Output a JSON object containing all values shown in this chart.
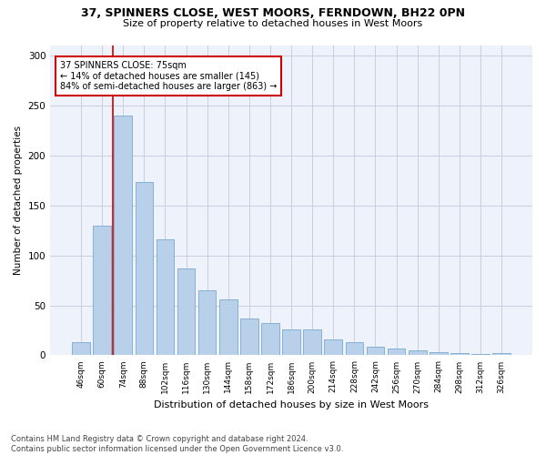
{
  "title1": "37, SPINNERS CLOSE, WEST MOORS, FERNDOWN, BH22 0PN",
  "title2": "Size of property relative to detached houses in West Moors",
  "xlabel": "Distribution of detached houses by size in West Moors",
  "ylabel": "Number of detached properties",
  "footnote": "Contains HM Land Registry data © Crown copyright and database right 2024.\nContains public sector information licensed under the Open Government Licence v3.0.",
  "bar_labels": [
    "46sqm",
    "60sqm",
    "74sqm",
    "88sqm",
    "102sqm",
    "116sqm",
    "130sqm",
    "144sqm",
    "158sqm",
    "172sqm",
    "186sqm",
    "200sqm",
    "214sqm",
    "228sqm",
    "242sqm",
    "256sqm",
    "270sqm",
    "284sqm",
    "298sqm",
    "312sqm",
    "326sqm"
  ],
  "bar_values": [
    13,
    130,
    240,
    173,
    116,
    87,
    65,
    56,
    37,
    32,
    26,
    26,
    16,
    13,
    9,
    7,
    5,
    3,
    2,
    1,
    2
  ],
  "bar_color": "#b8d0ea",
  "bar_edge_color": "#7aa8ce",
  "annotation_text": "37 SPINNERS CLOSE: 75sqm\n← 14% of detached houses are smaller (145)\n84% of semi-detached houses are larger (863) →",
  "annotation_box_color": "#ffffff",
  "annotation_box_edge": "#cc0000",
  "vline_color": "#cc0000",
  "ylim": [
    0,
    310
  ],
  "yticks": [
    0,
    50,
    100,
    150,
    200,
    250,
    300
  ],
  "background_color": "#eef2fb",
  "grid_color": "#c8cfe0"
}
